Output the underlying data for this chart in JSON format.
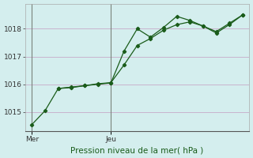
{
  "xlabel": "Pression niveau de la mer( hPa )",
  "background_color": "#d4eeee",
  "grid_color": "#c8aac8",
  "line_color": "#1a5c1a",
  "xtick_labels": [
    "Mer",
    "Jeu"
  ],
  "xtick_positions": [
    0,
    6
  ],
  "ylim": [
    1014.3,
    1018.9
  ],
  "yticks": [
    1015,
    1016,
    1017,
    1018
  ],
  "xlim": [
    -0.5,
    16.5
  ],
  "line1_x": [
    0,
    1,
    2,
    3,
    4,
    5,
    6,
    7,
    8,
    9,
    10,
    11,
    12,
    13,
    14,
    15,
    16
  ],
  "line1_y": [
    1014.55,
    1015.05,
    1015.85,
    1015.9,
    1015.95,
    1016.0,
    1016.05,
    1017.2,
    1018.0,
    1017.7,
    1018.05,
    1018.45,
    1018.3,
    1018.1,
    1017.85,
    1018.15,
    1018.5
  ],
  "line2_x": [
    2,
    3,
    4,
    5,
    6,
    7,
    8,
    9,
    10,
    11,
    12,
    13,
    14,
    15,
    16
  ],
  "line2_y": [
    1015.85,
    1015.88,
    1015.95,
    1016.02,
    1016.06,
    1016.7,
    1017.4,
    1017.65,
    1017.95,
    1018.15,
    1018.25,
    1018.1,
    1017.9,
    1018.2,
    1018.5
  ],
  "vline_positions": [
    0,
    6
  ],
  "vline_color": "#667766",
  "xlabel_color": "#1a5c1a",
  "xlabel_fontsize": 7.5,
  "ytick_fontsize": 6.5,
  "xtick_fontsize": 6.5
}
